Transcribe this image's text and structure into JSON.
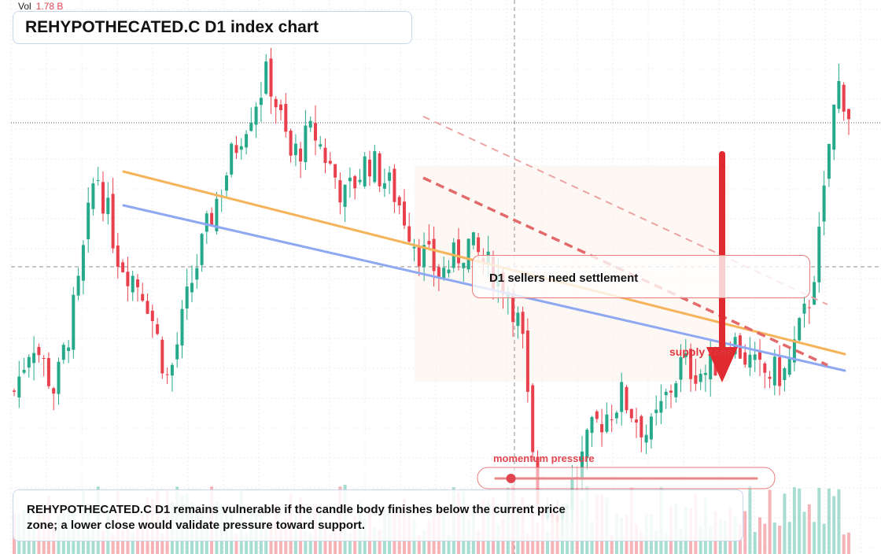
{
  "volume": {
    "label": "Vol",
    "value": "1.78 B"
  },
  "title": "REHYPOTHECATED.C D1 index chart",
  "annotations": {
    "callout": "D1 sellers need settlement",
    "supply_zone": "supply zone",
    "momentum": "momentum pressure",
    "momentum_gauge_level": 0.05
  },
  "caption": "REHYPOTHECATED.C D1 remains vulnerable if the candle body finishes below the current price zone; a lower close would validate pressure toward support.",
  "colors": {
    "up": "#26a98b",
    "down": "#e8404d",
    "trend_orange": "#f5b35a",
    "trend_blue": "#8ea8f2",
    "dashed_red": "#e36a6a",
    "arrow": "#e02a2f"
  },
  "chart_data": {
    "type": "candlestick",
    "timeframe": "D1",
    "symbol": "REHYPOTHECATED.C",
    "y_range": [
      0,
      100
    ],
    "candle_count": 170,
    "candles": []
  }
}
